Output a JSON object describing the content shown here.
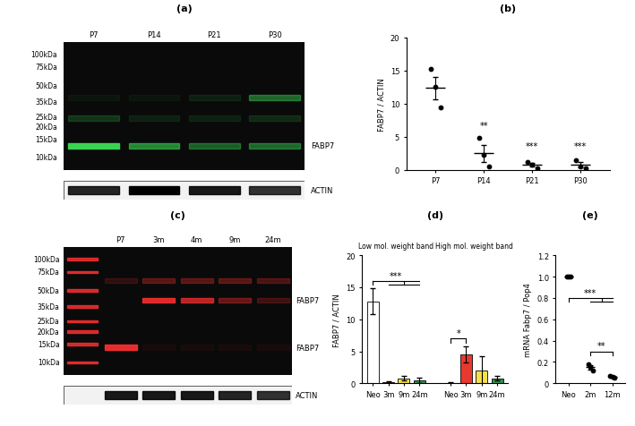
{
  "blots": [
    {
      "panel": "(a)",
      "color": "#39d353",
      "lanes": [
        "P7",
        "P14",
        "P21",
        "P30"
      ],
      "ladder": [
        {
          "kda": 100,
          "label": "100kDa"
        },
        {
          "kda": 75,
          "label": "75kDa"
        },
        {
          "kda": 50,
          "label": "50kDa"
        },
        {
          "kda": 35,
          "label": "35kDa"
        },
        {
          "kda": 25,
          "label": "25kDa"
        },
        {
          "kda": 20,
          "label": "20kDa"
        },
        {
          "kda": 15,
          "label": "15kDa"
        },
        {
          "kda": 10,
          "label": "10kDa"
        }
      ],
      "bands": [
        {
          "label": "FABP7",
          "kda": 13,
          "intensity": [
            1.0,
            0.6,
            0.4,
            0.45
          ]
        },
        {
          "kda": 38,
          "intensity": [
            0.05,
            0.05,
            0.1,
            0.45
          ]
        },
        {
          "kda": 24,
          "intensity": [
            0.2,
            0.1,
            0.1,
            0.15
          ]
        }
      ],
      "loading": {
        "label": "ACTIN",
        "intensity": [
          0.85,
          1.0,
          0.9,
          0.8
        ]
      }
    },
    {
      "panel": "(c)",
      "color": "#ff3030",
      "ladder_lane": true,
      "lanes": [
        "P7",
        "3m",
        "4m",
        "9m",
        "24m"
      ],
      "ladder": [
        {
          "kda": 100,
          "label": "100kDa"
        },
        {
          "kda": 75,
          "label": "75kDa"
        },
        {
          "kda": 50,
          "label": "50kDa"
        },
        {
          "kda": 35,
          "label": "35kDa"
        },
        {
          "kda": 25,
          "label": "25kDa"
        },
        {
          "kda": 20,
          "label": "20kDa"
        },
        {
          "kda": 15,
          "label": "15kDa"
        },
        {
          "kda": 10,
          "label": "10kDa"
        }
      ],
      "bands": [
        {
          "label": "FABP7",
          "kda": 40,
          "intensity": [
            0.0,
            0.85,
            0.7,
            0.35,
            0.2
          ]
        },
        {
          "label": "FABP7",
          "kda": 14,
          "intensity": [
            0.9,
            0.05,
            0.05,
            0.05,
            0.05
          ]
        },
        {
          "kda": 62,
          "intensity": [
            0.15,
            0.3,
            0.3,
            0.3,
            0.25
          ]
        }
      ],
      "loading": {
        "label": "ACTIN",
        "intensity": [
          0.9,
          0.9,
          0.9,
          0.85,
          0.8
        ]
      }
    }
  ],
  "chart_data": [
    {
      "panel": "(b)",
      "type": "scatter",
      "categories": [
        "P7",
        "P14",
        "P21",
        "P30"
      ],
      "points": [
        [
          15.3,
          12.5,
          9.5
        ],
        [
          4.8,
          2.3,
          0.5
        ],
        [
          1.2,
          0.8,
          0.3
        ],
        [
          1.5,
          0.5,
          0.3
        ]
      ],
      "mean": [
        12.4,
        2.5,
        0.8,
        0.8
      ],
      "error": [
        1.7,
        1.3,
        0.3,
        0.4
      ],
      "ylabel": "FABP7 / ACTIN",
      "ylim": [
        0,
        20
      ],
      "yticks": [
        0,
        5,
        10,
        15,
        20
      ],
      "color": "#000000",
      "annotations": [
        {
          "text": "**",
          "category": "P14",
          "y": 6
        },
        {
          "text": "***",
          "category": "P21",
          "y": 3
        },
        {
          "text": "***",
          "category": "P30",
          "y": 3
        }
      ]
    },
    {
      "panel": "(d)",
      "type": "bar",
      "categories": [
        "Neo",
        "3m",
        "9m",
        "24m"
      ],
      "colors": [
        "#ffffff",
        "#e8392f",
        "#f5e04a",
        "#2f8f4e"
      ],
      "groups": [
        {
          "name": "Low mol. weight band",
          "values": [
            12.8,
            0.2,
            0.8,
            0.5
          ],
          "error": [
            2.0,
            0.1,
            0.3,
            0.4
          ]
        },
        {
          "name": "High mol. weight band",
          "values": [
            0.1,
            4.5,
            2.0,
            0.8
          ],
          "error": [
            0.05,
            1.3,
            2.2,
            0.4
          ]
        }
      ],
      "ylabel": "FABP7 / ACTIN",
      "ylim": [
        0,
        20
      ],
      "yticks": [
        0,
        5,
        10,
        15,
        20
      ],
      "comparisons": [
        {
          "group": 0,
          "from": "Neo",
          "to": [
            "3m",
            "9m",
            "24m"
          ],
          "text": "***",
          "y": 16
        },
        {
          "group": 1,
          "from": "Neo",
          "to": [
            "3m"
          ],
          "text": "*",
          "y": 7
        }
      ]
    },
    {
      "panel": "(e)",
      "type": "scatter",
      "categories": [
        "Neo",
        "2m",
        "12m"
      ],
      "points": [
        [
          1.0,
          1.0,
          1.0
        ],
        [
          0.18,
          0.15,
          0.12
        ],
        [
          0.07,
          0.06,
          0.05
        ]
      ],
      "mean": [
        1.0,
        0.15,
        0.06
      ],
      "error": [
        0.0,
        0.02,
        0.006
      ],
      "ylabel": "mRNA Fabp7 / Pop4",
      "ylim": [
        0,
        1.2
      ],
      "yticks": [
        0,
        0.2,
        0.4,
        0.6,
        0.8,
        1.0,
        1.2
      ],
      "color": "#000000",
      "comparisons": [
        {
          "from": "Neo",
          "to": [
            "2m",
            "12m"
          ],
          "text": "***",
          "y": 0.8
        },
        {
          "from": "2m",
          "to": [
            "12m"
          ],
          "text": "**",
          "y": 0.3
        }
      ]
    }
  ]
}
